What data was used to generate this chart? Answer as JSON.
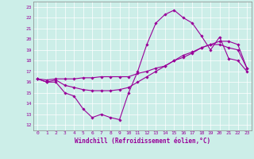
{
  "title": "",
  "xlabel": "Windchill (Refroidissement éolien,°C)",
  "ylabel": "",
  "bg_color": "#cceee8",
  "line_color": "#990099",
  "marker": "D",
  "markersize": 1.8,
  "linewidth": 0.8,
  "xlim": [
    -0.5,
    23.5
  ],
  "ylim": [
    11.5,
    23.5
  ],
  "xticks": [
    0,
    1,
    2,
    3,
    4,
    5,
    6,
    7,
    8,
    9,
    10,
    11,
    12,
    13,
    14,
    15,
    16,
    17,
    18,
    19,
    20,
    21,
    22,
    23
  ],
  "yticks": [
    12,
    13,
    14,
    15,
    16,
    17,
    18,
    19,
    20,
    21,
    22,
    23
  ],
  "line1_x": [
    0,
    1,
    2,
    3,
    4,
    5,
    6,
    7,
    8,
    9,
    10,
    11,
    12,
    13,
    14,
    15,
    16,
    17,
    18,
    19,
    20,
    21,
    22,
    23
  ],
  "line1_y": [
    16.3,
    16.0,
    16.0,
    15.0,
    14.7,
    13.5,
    12.7,
    13.0,
    12.7,
    12.5,
    15.0,
    17.0,
    19.5,
    21.5,
    22.3,
    22.7,
    22.0,
    21.5,
    20.3,
    19.0,
    20.2,
    18.2,
    18.0,
    17.0
  ],
  "line2_x": [
    0,
    1,
    2,
    3,
    4,
    5,
    6,
    7,
    8,
    9,
    10,
    11,
    12,
    13,
    14,
    15,
    16,
    17,
    18,
    19,
    20,
    21,
    22,
    23
  ],
  "line2_y": [
    16.3,
    16.0,
    16.2,
    15.7,
    15.5,
    15.3,
    15.2,
    15.2,
    15.2,
    15.3,
    15.5,
    16.0,
    16.5,
    17.0,
    17.5,
    18.0,
    18.5,
    18.8,
    19.2,
    19.5,
    19.5,
    19.2,
    19.0,
    17.3
  ],
  "line3_x": [
    0,
    1,
    2,
    3,
    4,
    5,
    6,
    7,
    8,
    9,
    10,
    11,
    12,
    13,
    14,
    15,
    16,
    17,
    18,
    19,
    20,
    21,
    22,
    23
  ],
  "line3_y": [
    16.3,
    16.2,
    16.3,
    16.3,
    16.3,
    16.4,
    16.4,
    16.5,
    16.5,
    16.5,
    16.5,
    16.8,
    17.0,
    17.3,
    17.5,
    18.0,
    18.3,
    18.7,
    19.2,
    19.5,
    19.8,
    19.8,
    19.5,
    17.3
  ],
  "grid_color": "#aadddd",
  "spine_color": "#888888",
  "tick_fontsize": 4.5,
  "xlabel_fontsize": 5.5
}
